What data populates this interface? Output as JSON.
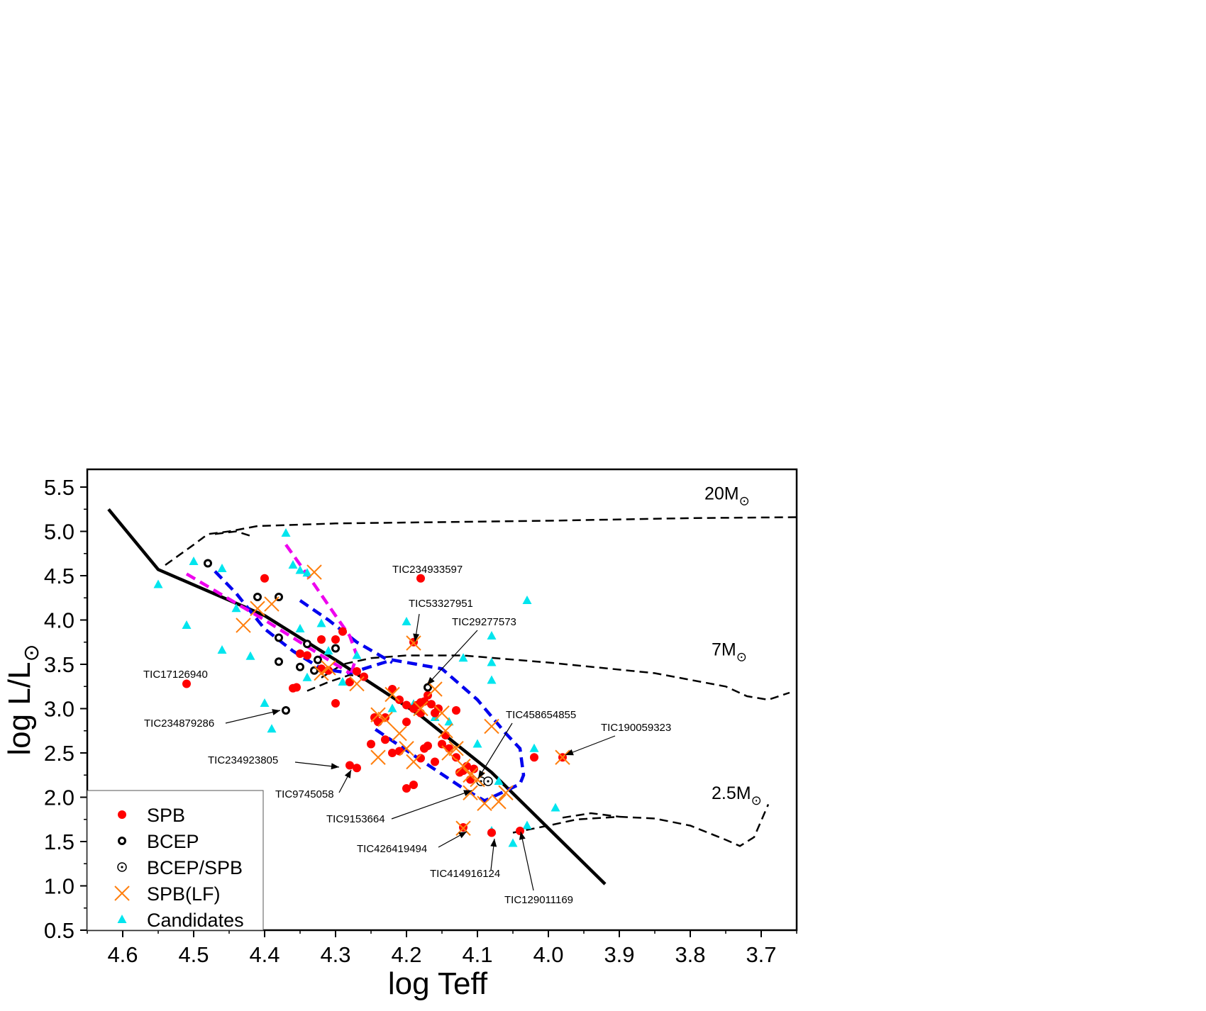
{
  "chart_data": {
    "type": "scatter",
    "xlabel": "log Teff",
    "ylabel": "log L/L",
    "xlim": [
      4.65,
      3.65
    ],
    "ylim": [
      0.5,
      5.7
    ],
    "x_inverted": true,
    "xticks": [
      "4.6",
      "4.5",
      "4.4",
      "4.3",
      "4.2",
      "4.1",
      "4.0",
      "3.9",
      "3.8",
      "3.7"
    ],
    "yticks": [
      "0.5",
      "1.0",
      "1.5",
      "2.0",
      "2.5",
      "3.0",
      "3.5",
      "4.0",
      "4.5",
      "5.0",
      "5.5"
    ],
    "legend": {
      "position": "bottom-left"
    },
    "series": [
      {
        "name": "SPB",
        "marker": "filled-circle",
        "color": "#ff0000",
        "points": [
          [
            4.51,
            3.28
          ],
          [
            4.4,
            4.47
          ],
          [
            4.36,
            3.23
          ],
          [
            4.355,
            3.24
          ],
          [
            4.35,
            3.62
          ],
          [
            4.34,
            3.6
          ],
          [
            4.32,
            3.78
          ],
          [
            4.32,
            3.45
          ],
          [
            4.31,
            3.43
          ],
          [
            4.3,
            3.78
          ],
          [
            4.29,
            3.87
          ],
          [
            4.3,
            3.06
          ],
          [
            4.28,
            3.3
          ],
          [
            4.27,
            3.42
          ],
          [
            4.26,
            3.36
          ],
          [
            4.25,
            2.6
          ],
          [
            4.245,
            2.9
          ],
          [
            4.24,
            2.85
          ],
          [
            4.23,
            2.9
          ],
          [
            4.22,
            3.22
          ],
          [
            4.21,
            3.1
          ],
          [
            4.21,
            2.52
          ],
          [
            4.2,
            3.04
          ],
          [
            4.2,
            2.85
          ],
          [
            4.19,
            3.0
          ],
          [
            4.185,
            3.04
          ],
          [
            4.18,
            2.95
          ],
          [
            4.18,
            3.07
          ],
          [
            4.175,
            2.55
          ],
          [
            4.17,
            2.58
          ],
          [
            4.17,
            3.15
          ],
          [
            4.165,
            3.05
          ],
          [
            4.16,
            2.95
          ],
          [
            4.155,
            3.0
          ],
          [
            4.15,
            2.6
          ],
          [
            4.145,
            2.7
          ],
          [
            4.14,
            2.55
          ],
          [
            4.13,
            2.98
          ],
          [
            4.13,
            2.45
          ],
          [
            4.125,
            2.28
          ],
          [
            4.12,
            2.3
          ],
          [
            4.115,
            2.35
          ],
          [
            4.11,
            2.2
          ],
          [
            4.105,
            2.32
          ],
          [
            4.2,
            2.1
          ],
          [
            4.19,
            2.14
          ],
          [
            4.22,
            2.5
          ],
          [
            4.23,
            2.65
          ],
          [
            4.18,
            2.44
          ],
          [
            4.16,
            2.4
          ],
          [
            4.175,
            3.08
          ],
          [
            4.02,
            2.45
          ],
          [
            4.08,
            1.6
          ],
          [
            4.04,
            1.62
          ],
          [
            3.98,
            2.45
          ],
          [
            4.28,
            2.36
          ],
          [
            4.27,
            2.33
          ],
          [
            4.18,
            4.47
          ],
          [
            4.19,
            3.75
          ],
          [
            4.12,
            1.66
          ]
        ]
      },
      {
        "name": "BCEP",
        "marker": "bold-ring",
        "color": "#000000",
        "points": [
          [
            4.48,
            4.64
          ],
          [
            4.41,
            4.26
          ],
          [
            4.38,
            4.26
          ],
          [
            4.38,
            3.8
          ],
          [
            4.38,
            3.53
          ],
          [
            4.35,
            3.47
          ],
          [
            4.34,
            3.73
          ],
          [
            4.33,
            3.43
          ],
          [
            4.325,
            3.55
          ],
          [
            4.3,
            3.68
          ],
          [
            4.37,
            2.98
          ],
          [
            4.17,
            3.24
          ]
        ]
      },
      {
        "name": "BCEP/SPB",
        "marker": "dotted-ring",
        "color": "#000000",
        "points": [
          [
            4.095,
            2.18
          ],
          [
            4.085,
            2.18
          ]
        ]
      },
      {
        "name": "SPB(LF)",
        "marker": "cross",
        "color": "#ff7f0e",
        "points": [
          [
            4.43,
            3.94
          ],
          [
            4.41,
            4.13
          ],
          [
            4.39,
            4.18
          ],
          [
            4.33,
            4.54
          ],
          [
            4.32,
            3.4
          ],
          [
            4.31,
            3.46
          ],
          [
            4.27,
            3.28
          ],
          [
            4.24,
            2.93
          ],
          [
            4.23,
            2.88
          ],
          [
            4.22,
            3.16
          ],
          [
            4.21,
            2.72
          ],
          [
            4.2,
            2.55
          ],
          [
            4.19,
            2.4
          ],
          [
            4.16,
            3.22
          ],
          [
            4.15,
            2.95
          ],
          [
            4.14,
            2.5
          ],
          [
            4.13,
            2.55
          ],
          [
            4.12,
            2.35
          ],
          [
            4.11,
            2.25
          ],
          [
            4.1,
            2.2
          ],
          [
            4.09,
            1.93
          ],
          [
            4.08,
            2.8
          ],
          [
            4.07,
            1.95
          ],
          [
            4.06,
            2.05
          ],
          [
            4.19,
            3.74
          ],
          [
            4.18,
            3.0
          ],
          [
            4.12,
            1.65
          ],
          [
            3.98,
            2.45
          ],
          [
            4.24,
            2.45
          ],
          [
            4.145,
            2.75
          ],
          [
            4.11,
            2.05
          ]
        ]
      },
      {
        "name": "Candidates",
        "marker": "triangle",
        "color": "#00e5ee",
        "points": [
          [
            4.55,
            4.4
          ],
          [
            4.51,
            3.94
          ],
          [
            4.5,
            4.66
          ],
          [
            4.46,
            4.58
          ],
          [
            4.46,
            3.66
          ],
          [
            4.44,
            4.13
          ],
          [
            4.42,
            3.59
          ],
          [
            4.4,
            3.06
          ],
          [
            4.39,
            2.77
          ],
          [
            4.37,
            4.98
          ],
          [
            4.36,
            4.62
          ],
          [
            4.35,
            4.56
          ],
          [
            4.34,
            4.53
          ],
          [
            4.35,
            3.9
          ],
          [
            4.34,
            3.35
          ],
          [
            4.32,
            3.96
          ],
          [
            4.31,
            3.65
          ],
          [
            4.29,
            3.3
          ],
          [
            4.27,
            3.6
          ],
          [
            4.22,
            3.0
          ],
          [
            4.2,
            3.98
          ],
          [
            4.19,
            3.05
          ],
          [
            4.16,
            2.9
          ],
          [
            4.14,
            2.85
          ],
          [
            4.12,
            3.57
          ],
          [
            4.08,
            3.82
          ],
          [
            4.08,
            3.52
          ],
          [
            4.08,
            3.32
          ],
          [
            4.03,
            4.22
          ],
          [
            4.02,
            2.55
          ],
          [
            3.99,
            1.88
          ],
          [
            4.03,
            1.68
          ],
          [
            4.05,
            1.48
          ],
          [
            4.08,
            1.62
          ],
          [
            4.1,
            2.6
          ],
          [
            4.07,
            2.18
          ]
        ]
      }
    ],
    "tracks": [
      {
        "label_main": "20M",
        "label_x": 3.78,
        "label_y": 5.36
      },
      {
        "label_main": "7M",
        "label_x": 3.77,
        "label_y": 3.6
      },
      {
        "label_main": "2.5M",
        "label_x": 3.77,
        "label_y": 1.98
      }
    ],
    "annotations": [
      {
        "text": "TIC234933597"
      },
      {
        "text": "TIC53327951"
      },
      {
        "text": "TIC29277573"
      },
      {
        "text": "TIC17126940"
      },
      {
        "text": "TIC234879286"
      },
      {
        "text": "TIC458654855"
      },
      {
        "text": "TIC190059323"
      },
      {
        "text": "TIC234923805"
      },
      {
        "text": "TIC9745058"
      },
      {
        "text": "TIC9153664"
      },
      {
        "text": "TIC426419494"
      },
      {
        "text": "TIC414916124"
      },
      {
        "text": "TIC129011169"
      }
    ]
  }
}
